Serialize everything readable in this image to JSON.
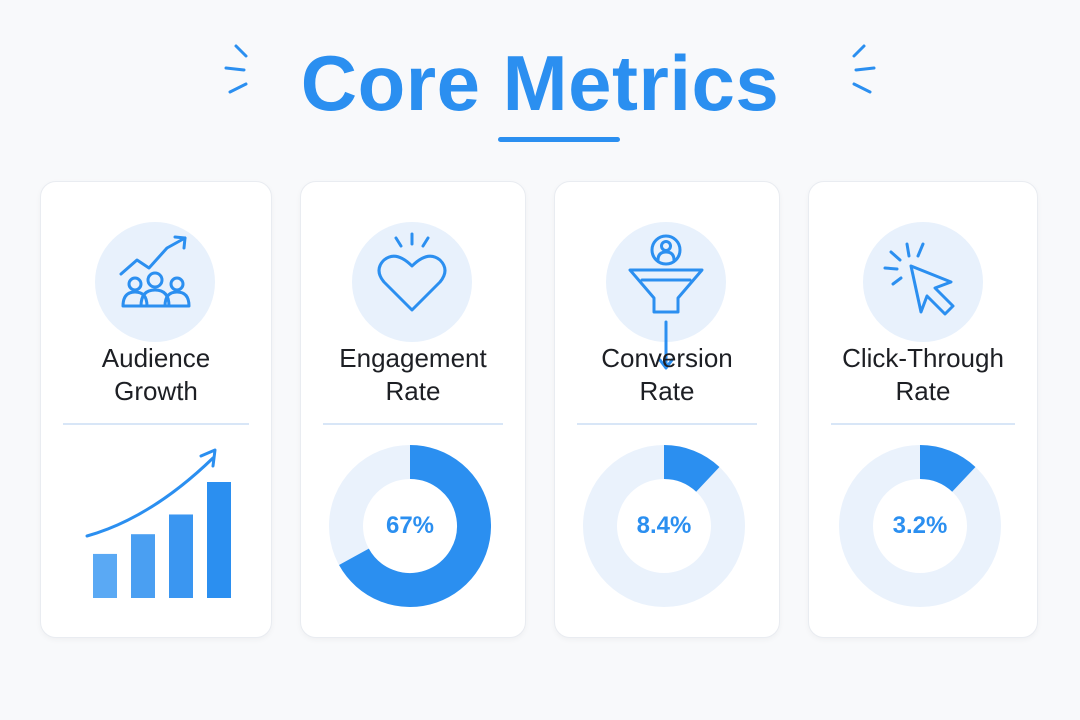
{
  "title": "Core Metrics",
  "colors": {
    "accent": "#2b8ff0",
    "track": "#eaf2fc",
    "text": "#1d1f24"
  },
  "cards": [
    {
      "title_line1": "Audience",
      "title_line2": "Growth",
      "icon": "audience-growth-icon",
      "viz": "rising-bars",
      "bar_levels": [
        0.38,
        0.55,
        0.72,
        1.0
      ]
    },
    {
      "title_line1": "Engagement",
      "title_line2": "Rate",
      "icon": "heart-icon",
      "viz": "donut",
      "value_label": "67%",
      "value": 67
    },
    {
      "title_line1": "Conversion",
      "title_line2": "Rate",
      "icon": "funnel-icon",
      "viz": "donut",
      "value_label": "8.4%",
      "value": 8.4
    },
    {
      "title_line1": "Click-Through",
      "title_line2": "Rate",
      "icon": "cursor-click-icon",
      "viz": "donut",
      "value_label": "3.2%",
      "value": 3.2
    }
  ]
}
